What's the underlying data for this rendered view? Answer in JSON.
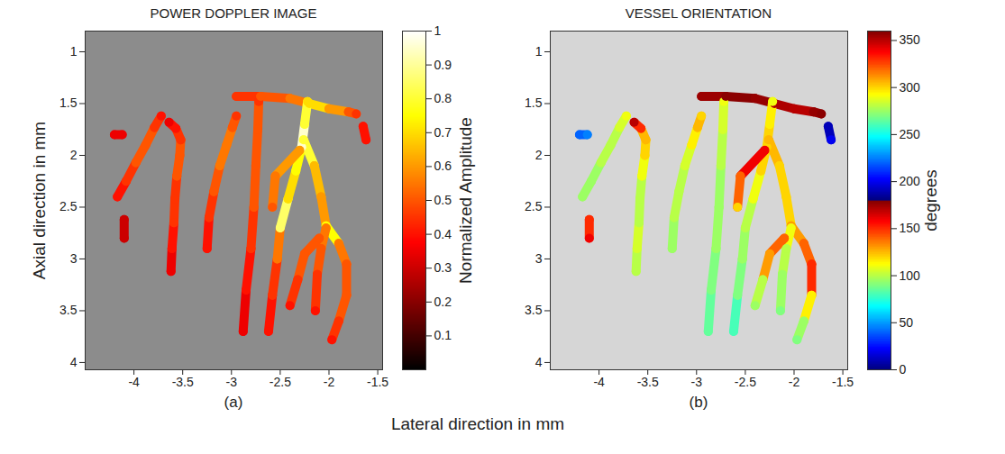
{
  "xlabel": "Lateral direction in mm",
  "chart_data": [
    {
      "type": "heatmap",
      "title": "POWER DOPPLER IMAGE",
      "panel": "(a)",
      "ylabel": "Axial direction in mm",
      "color": "hot",
      "xlim": [
        -4.5,
        -1.45
      ],
      "xticks": [
        -4,
        -3.5,
        -3,
        -2.5,
        -2,
        -1.5
      ],
      "ylim": [
        0.8,
        4.07
      ],
      "yticks": [
        1,
        1.5,
        2,
        2.5,
        3,
        3.5,
        4
      ],
      "colorbar": {
        "label": "Normalized Amplitude",
        "lim": [
          0,
          1
        ],
        "ticks": [
          0.1,
          0.2,
          0.3,
          0.4,
          0.5,
          0.6,
          0.7,
          0.8,
          0.9,
          1
        ]
      },
      "vessels": [
        {
          "x": [
            -4.17,
            -4.08,
            -3.98,
            -3.88,
            -3.79,
            -3.72
          ],
          "y": [
            2.4,
            2.25,
            2.07,
            1.9,
            1.73,
            1.62
          ],
          "values": [
            0.4,
            0.45,
            0.5,
            0.5,
            0.45,
            0.4
          ]
        },
        {
          "x": [
            -3.62,
            -3.61,
            -3.59,
            -3.58,
            -3.56,
            -3.53,
            -3.52,
            -3.57,
            -3.64
          ],
          "y": [
            3.12,
            2.9,
            2.65,
            2.42,
            2.2,
            2.0,
            1.85,
            1.74,
            1.68
          ],
          "values": [
            0.35,
            0.4,
            0.45,
            0.45,
            0.5,
            0.5,
            0.45,
            0.4,
            0.35
          ]
        },
        {
          "x": [
            -3.25,
            -3.23,
            -3.18,
            -3.12,
            -3.05,
            -2.99,
            -2.95
          ],
          "y": [
            2.9,
            2.6,
            2.35,
            2.1,
            1.9,
            1.73,
            1.62
          ],
          "values": [
            0.4,
            0.45,
            0.5,
            0.55,
            0.55,
            0.5,
            0.45
          ]
        },
        {
          "x": [
            -2.88,
            -2.85,
            -2.8,
            -2.77,
            -2.75,
            -2.73,
            -2.72
          ],
          "y": [
            3.7,
            3.3,
            2.9,
            2.5,
            2.1,
            1.75,
            1.48
          ],
          "values": [
            0.35,
            0.4,
            0.45,
            0.5,
            0.5,
            0.5,
            0.45
          ]
        },
        {
          "x": [
            -2.95,
            -2.7,
            -2.4,
            -2.2,
            -2.0,
            -1.8,
            -1.72
          ],
          "y": [
            1.43,
            1.43,
            1.45,
            1.5,
            1.55,
            1.58,
            1.6
          ],
          "values": [
            0.45,
            0.5,
            0.55,
            0.7,
            0.6,
            0.5,
            0.45
          ]
        },
        {
          "x": [
            -2.62,
            -2.58,
            -2.53,
            -2.5,
            -2.42,
            -2.34,
            -2.28,
            -2.25,
            -2.22
          ],
          "y": [
            3.7,
            3.35,
            3.0,
            2.7,
            2.42,
            2.15,
            1.92,
            1.7,
            1.48
          ],
          "values": [
            0.4,
            0.45,
            0.55,
            0.85,
            0.7,
            0.75,
            0.95,
            0.8,
            0.7
          ]
        },
        {
          "x": [
            -2.3,
            -2.55,
            -2.58
          ],
          "y": [
            1.95,
            2.2,
            2.5
          ],
          "values": [
            0.6,
            0.55,
            0.5
          ]
        },
        {
          "x": [
            -2.26,
            -2.15,
            -2.08,
            -2.03,
            -1.9,
            -1.82,
            -1.82,
            -1.9,
            -1.97
          ],
          "y": [
            1.85,
            2.1,
            2.4,
            2.68,
            2.85,
            3.05,
            3.35,
            3.6,
            3.78
          ],
          "values": [
            0.8,
            0.65,
            0.6,
            0.75,
            0.55,
            0.5,
            0.5,
            0.45,
            0.4
          ]
        },
        {
          "x": [
            -2.03,
            -2.08,
            -2.12,
            -2.14
          ],
          "y": [
            2.7,
            2.9,
            3.15,
            3.5
          ],
          "values": [
            0.55,
            0.5,
            0.45,
            0.4
          ]
        },
        {
          "x": [
            -2.1,
            -2.25,
            -2.32,
            -2.4
          ],
          "y": [
            2.8,
            2.95,
            3.2,
            3.45
          ],
          "values": [
            0.5,
            0.5,
            0.45,
            0.4
          ]
        },
        {
          "x": [
            -4.2,
            -4.12
          ],
          "y": [
            1.8,
            1.8
          ],
          "values": [
            0.35,
            0.35
          ]
        },
        {
          "x": [
            -4.1,
            -4.1
          ],
          "y": [
            2.62,
            2.8
          ],
          "values": [
            0.3,
            0.3
          ]
        },
        {
          "x": [
            -1.65,
            -1.62
          ],
          "y": [
            1.72,
            1.85
          ],
          "values": [
            0.4,
            0.4
          ]
        }
      ]
    },
    {
      "type": "heatmap",
      "title": "VESSEL ORIENTATION",
      "panel": "(b)",
      "color": "jet",
      "xlim": [
        -4.5,
        -1.45
      ],
      "xticks": [
        -4,
        -3.5,
        -3,
        -2.5,
        -2,
        -1.5
      ],
      "ylim": [
        0.8,
        4.07
      ],
      "yticks": [
        1,
        1.5,
        2,
        2.5,
        3,
        3.5,
        4
      ],
      "colorbar": {
        "label": "degrees",
        "lim": [
          0,
          360
        ],
        "ticks": [
          0,
          50,
          100,
          150,
          200,
          250,
          300,
          350
        ]
      },
      "vessels": [
        {
          "x": [
            -4.17,
            -4.08,
            -3.98,
            -3.88,
            -3.79,
            -3.72
          ],
          "y": [
            2.4,
            2.25,
            2.07,
            1.9,
            1.73,
            1.62
          ],
          "values": [
            95,
            95,
            100,
            100,
            105,
            110
          ]
        },
        {
          "x": [
            -3.62,
            -3.61,
            -3.59,
            -3.58,
            -3.56,
            -3.53,
            -3.52,
            -3.57,
            -3.64
          ],
          "y": [
            3.12,
            2.9,
            2.65,
            2.42,
            2.2,
            2.0,
            1.85,
            1.74,
            1.68
          ],
          "values": [
            100,
            105,
            100,
            100,
            110,
            120,
            125,
            150,
            170
          ]
        },
        {
          "x": [
            -3.25,
            -3.23,
            -3.18,
            -3.12,
            -3.05,
            -2.99,
            -2.95
          ],
          "y": [
            2.9,
            2.6,
            2.35,
            2.1,
            1.9,
            1.73,
            1.62
          ],
          "values": [
            95,
            100,
            100,
            105,
            115,
            125,
            120
          ]
        },
        {
          "x": [
            -2.88,
            -2.85,
            -2.8,
            -2.77,
            -2.75,
            -2.73,
            -2.72
          ],
          "y": [
            3.7,
            3.3,
            2.9,
            2.5,
            2.1,
            1.75,
            1.48
          ],
          "values": [
            85,
            90,
            95,
            95,
            100,
            105,
            110
          ]
        },
        {
          "x": [
            -2.95,
            -2.7,
            -2.4,
            -2.2,
            -2.0,
            -1.8,
            -1.72
          ],
          "y": [
            1.43,
            1.43,
            1.45,
            1.5,
            1.55,
            1.58,
            1.6
          ],
          "values": [
            175,
            178,
            176,
            172,
            170,
            176,
            178
          ]
        },
        {
          "x": [
            -2.62,
            -2.58,
            -2.53,
            -2.5,
            -2.42,
            -2.34,
            -2.28,
            -2.25,
            -2.22
          ],
          "y": [
            3.7,
            3.35,
            3.0,
            2.7,
            2.42,
            2.15,
            1.92,
            1.7,
            1.48
          ],
          "values": [
            80,
            90,
            95,
            100,
            110,
            120,
            120,
            115,
            110
          ]
        },
        {
          "x": [
            -2.3,
            -2.55,
            -2.58
          ],
          "y": [
            1.95,
            2.2,
            2.5
          ],
          "values": [
            160,
            140,
            120
          ]
        },
        {
          "x": [
            -2.26,
            -2.15,
            -2.08,
            -2.03,
            -1.9,
            -1.82,
            -1.82,
            -1.9,
            -1.97
          ],
          "y": [
            1.85,
            2.1,
            2.4,
            2.68,
            2.85,
            3.05,
            3.35,
            3.6,
            3.78
          ],
          "values": [
            125,
            120,
            120,
            130,
            140,
            150,
            115,
            95,
            90
          ]
        },
        {
          "x": [
            -2.03,
            -2.08,
            -2.12,
            -2.14
          ],
          "y": [
            2.7,
            2.9,
            3.15,
            3.5
          ],
          "values": [
            110,
            100,
            95,
            90
          ]
        },
        {
          "x": [
            -2.1,
            -2.25,
            -2.32,
            -2.4
          ],
          "y": [
            2.8,
            2.95,
            3.2,
            3.45
          ],
          "values": [
            140,
            130,
            100,
            95
          ]
        },
        {
          "x": [
            -4.2,
            -4.12
          ],
          "y": [
            1.8,
            1.8
          ],
          "values": [
            40,
            45
          ]
        },
        {
          "x": [
            -4.1,
            -4.1
          ],
          "y": [
            2.62,
            2.8
          ],
          "values": [
            150,
            160
          ]
        },
        {
          "x": [
            -1.65,
            -1.62
          ],
          "y": [
            1.72,
            1.85
          ],
          "values": [
            190,
            200
          ]
        }
      ]
    }
  ]
}
